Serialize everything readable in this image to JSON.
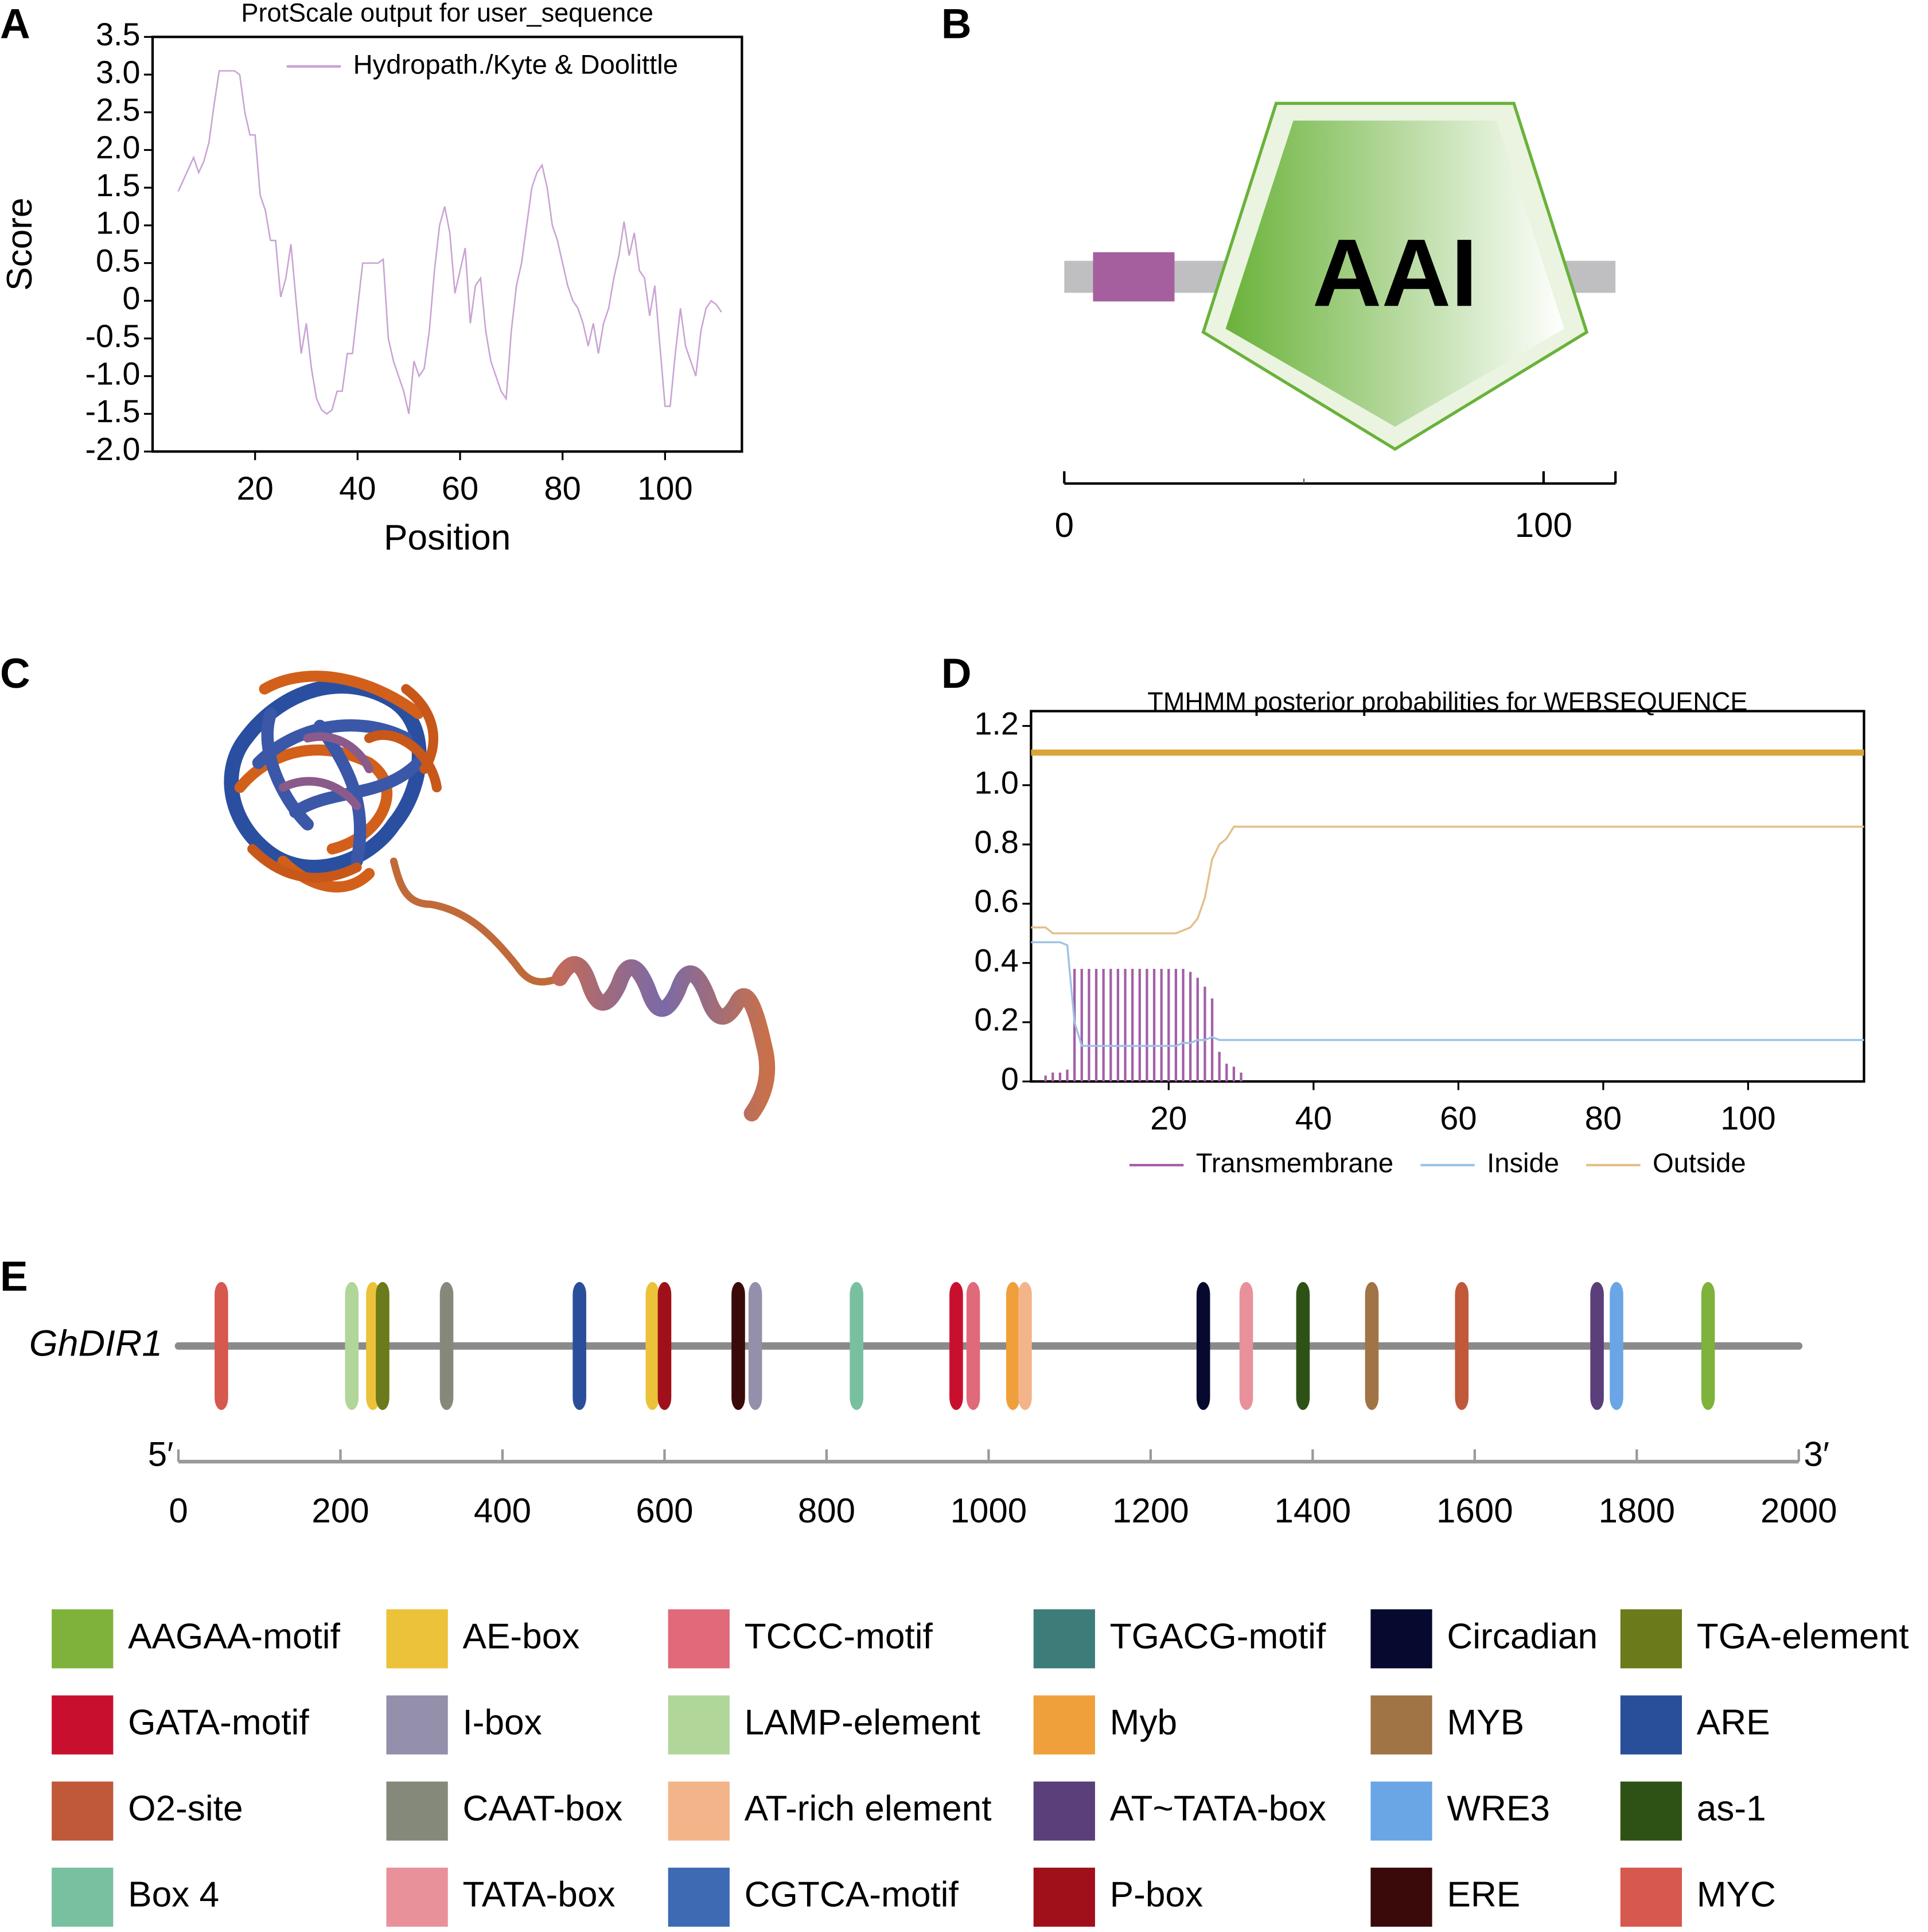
{
  "panel_labels": [
    "A",
    "B",
    "C",
    "D",
    "E"
  ],
  "chart_data": [
    {
      "type": "line",
      "title": "ProtScale output for user_sequence",
      "xlabel": "Position",
      "ylabel": "Score",
      "xlim": [
        0,
        115
      ],
      "ylim": [
        -2,
        3.5
      ],
      "xticks": [
        20,
        40,
        60,
        80,
        100
      ],
      "yticks": [
        3.5,
        {
          "value": 3,
          "label": "3.0"
        },
        2.5,
        {
          "value": 2,
          "label": "2.0"
        },
        1.5,
        {
          "value": 1,
          "label": "1.0"
        },
        0.5,
        0,
        -0.5,
        {
          "value": -1,
          "label": "-1.0"
        },
        -1.5,
        {
          "value": -2,
          "label": "-2.0"
        }
      ],
      "legend": "upper center",
      "x": [
        5,
        6,
        7,
        8,
        9,
        10,
        11,
        12,
        13,
        14,
        15,
        16,
        17,
        18,
        19,
        20,
        21,
        22,
        23,
        24,
        25,
        26,
        27,
        28,
        29,
        30,
        31,
        32,
        33,
        34,
        35,
        36,
        37,
        38,
        39,
        40,
        41,
        42,
        43,
        44,
        45,
        46,
        47,
        48,
        49,
        50,
        51,
        52,
        53,
        54,
        55,
        56,
        57,
        58,
        59,
        60,
        61,
        62,
        63,
        64,
        65,
        66,
        67,
        68,
        69,
        70,
        71,
        72,
        73,
        74,
        75,
        76,
        77,
        78,
        79,
        80,
        81,
        82,
        83,
        84,
        85,
        86,
        87,
        88,
        89,
        90,
        91,
        92,
        93,
        94,
        95,
        96,
        97,
        98,
        99,
        100,
        101,
        102,
        103,
        104,
        105,
        106,
        107,
        108,
        109,
        110,
        111
      ],
      "series": [
        {
          "name": "Hydropath./Kyte & Doolittle",
          "color": "#c9a3d3",
          "style": "line",
          "values": [
            1.45,
            1.6,
            1.75,
            1.9,
            1.7,
            1.85,
            2.1,
            2.6,
            3.05,
            3.05,
            3.05,
            3.05,
            3.0,
            2.5,
            2.2,
            2.2,
            1.4,
            1.2,
            0.8,
            0.8,
            0.05,
            0.3,
            0.75,
            0.0,
            -0.7,
            -0.3,
            -0.9,
            -1.3,
            -1.45,
            -1.5,
            -1.45,
            -1.2,
            -1.2,
            -0.7,
            -0.7,
            -0.1,
            0.5,
            0.5,
            0.5,
            0.5,
            0.55,
            -0.5,
            -0.8,
            -1.0,
            -1.2,
            -1.5,
            -0.8,
            -1.0,
            -0.9,
            -0.4,
            0.4,
            1.0,
            1.25,
            0.9,
            0.1,
            0.4,
            0.7,
            -0.3,
            0.2,
            0.3,
            -0.4,
            -0.8,
            -1.0,
            -1.2,
            -1.3,
            -0.4,
            0.2,
            0.5,
            1.0,
            1.5,
            1.7,
            1.8,
            1.5,
            1.0,
            0.8,
            0.5,
            0.2,
            0.0,
            -0.1,
            -0.3,
            -0.6,
            -0.3,
            -0.7,
            -0.3,
            -0.1,
            0.3,
            0.6,
            1.05,
            0.6,
            0.9,
            0.4,
            0.3,
            -0.2,
            0.2,
            -0.6,
            -1.4,
            -1.4,
            -0.7,
            -0.1,
            -0.6,
            -0.8,
            -1.0,
            -0.4,
            -0.1,
            0.0,
            -0.05,
            -0.15
          ]
        }
      ]
    },
    {
      "type": "domain",
      "length": 115,
      "xlim": [
        0,
        115
      ],
      "xticks": [
        0,
        100
      ],
      "minor_xticks": [
        50
      ],
      "bar_color": "#bfbfc1",
      "domains": [
        {
          "start": 6,
          "end": 23,
          "color": "#a65f9e"
        },
        {
          "name": "AAI",
          "start": 29,
          "end": 109,
          "color": "#6ab23a",
          "label_color": "#1e4a9a"
        }
      ]
    },
    {
      "type": "line",
      "title": "TMHMM posterior probabilities for WEBSEQUENCE",
      "xlim": [
        1,
        116
      ],
      "ylim": [
        0,
        1.25
      ],
      "xticks": [
        20,
        40,
        60,
        80,
        100
      ],
      "yticks": [
        0,
        0.2,
        0.4,
        0.6,
        0.8,
        {
          "value": 1,
          "label": "1.0"
        },
        1.2
      ],
      "legend": "lower center",
      "reference_line": {
        "value": 1.11,
        "color": "#d9a53a"
      },
      "x": [
        1,
        2,
        3,
        4,
        5,
        6,
        7,
        8,
        9,
        10,
        11,
        12,
        13,
        14,
        15,
        16,
        17,
        18,
        19,
        20,
        21,
        22,
        23,
        24,
        25,
        26,
        27,
        28,
        29,
        30,
        116
      ],
      "series": [
        {
          "name": "Transmembrane",
          "color": "#a35fa8",
          "style": "impulses",
          "values": [
            0,
            0,
            0.02,
            0.03,
            0.03,
            0.04,
            0.38,
            0.38,
            0.38,
            0.38,
            0.38,
            0.38,
            0.38,
            0.38,
            0.38,
            0.38,
            0.38,
            0.38,
            0.38,
            0.38,
            0.38,
            0.38,
            0.37,
            0.35,
            0.32,
            0.28,
            0.1,
            0.06,
            0.05,
            0.03,
            0
          ]
        },
        {
          "name": "Inside",
          "color": "#9cc3e6",
          "style": "line",
          "values": [
            0.47,
            0.47,
            0.47,
            0.47,
            0.47,
            0.46,
            0.2,
            0.12,
            0.12,
            0.12,
            0.12,
            0.12,
            0.12,
            0.12,
            0.12,
            0.12,
            0.12,
            0.12,
            0.12,
            0.12,
            0.12,
            0.13,
            0.13,
            0.14,
            0.14,
            0.15,
            0.14,
            0.14,
            0.14,
            0.14,
            0.14
          ]
        },
        {
          "name": "Outside",
          "color": "#e3bf8a",
          "style": "line",
          "values": [
            0.52,
            0.52,
            0.52,
            0.5,
            0.5,
            0.5,
            0.5,
            0.5,
            0.5,
            0.5,
            0.5,
            0.5,
            0.5,
            0.5,
            0.5,
            0.5,
            0.5,
            0.5,
            0.5,
            0.5,
            0.5,
            0.51,
            0.52,
            0.55,
            0.62,
            0.75,
            0.8,
            0.82,
            0.86,
            0.86,
            0.86
          ]
        }
      ]
    },
    {
      "type": "promoter",
      "gene": "GhDIR1",
      "start_label": "5′",
      "end_label": "3′",
      "xlim": [
        0,
        2000
      ],
      "xticks": [
        0,
        200,
        400,
        600,
        800,
        1000,
        1200,
        1400,
        1600,
        1800,
        2000
      ],
      "line_color": "#8a8a8a",
      "elements": [
        {
          "position": 53,
          "color": "#d6584e"
        },
        {
          "position": 214,
          "color": "#b0d69a"
        },
        {
          "position": 240,
          "color": "#ecc23a"
        },
        {
          "position": 252,
          "color": "#6b7a1a"
        },
        {
          "position": 331,
          "color": "#85897a"
        },
        {
          "position": 495,
          "color": "#2a4f9a"
        },
        {
          "position": 585,
          "color": "#ecc23a"
        },
        {
          "position": 600,
          "color": "#a0101a"
        },
        {
          "position": 691,
          "color": "#3a0a0a"
        },
        {
          "position": 712,
          "color": "#948fab"
        },
        {
          "position": 837,
          "color": "#78c0a0"
        },
        {
          "position": 960,
          "color": "#c8102e"
        },
        {
          "position": 981,
          "color": "#e06a7a"
        },
        {
          "position": 1030,
          "color": "#f0a03a"
        },
        {
          "position": 1045,
          "color": "#f4b48a"
        },
        {
          "position": 1265,
          "color": "#070a2e"
        },
        {
          "position": 1318,
          "color": "#e8919a"
        },
        {
          "position": 1388,
          "color": "#2e5216"
        },
        {
          "position": 1473,
          "color": "#a07444"
        },
        {
          "position": 1584,
          "color": "#c0583a"
        },
        {
          "position": 1751,
          "color": "#5a3f7a"
        },
        {
          "position": 1775,
          "color": "#6aa6e6"
        },
        {
          "position": 1888,
          "color": "#7fb23a"
        }
      ],
      "legend_items": [
        {
          "name": "AAGAA-motif",
          "color": "#7fb23a"
        },
        {
          "name": "AE-box",
          "color": "#ecc23a"
        },
        {
          "name": "TCCC-motif",
          "color": "#e06a7a"
        },
        {
          "name": "TGACG-motif",
          "color": "#3c7d7a"
        },
        {
          "name": "Circadian",
          "color": "#070a2e"
        },
        {
          "name": "TGA-element",
          "color": "#6b7a1a"
        },
        {
          "name": "GATA-motif",
          "color": "#c8102e"
        },
        {
          "name": "I-box",
          "color": "#948fab"
        },
        {
          "name": "LAMP-element",
          "color": "#b0d69a"
        },
        {
          "name": "Myb",
          "color": "#f0a03a"
        },
        {
          "name": "MYB",
          "color": "#a07444"
        },
        {
          "name": "ARE",
          "color": "#2a4f9a"
        },
        {
          "name": "O2-site",
          "color": "#c0583a"
        },
        {
          "name": "CAAT-box",
          "color": "#85897a"
        },
        {
          "name": "AT-rich element",
          "color": "#f4b48a"
        },
        {
          "name": "AT~TATA-box",
          "color": "#5a3f7a"
        },
        {
          "name": "WRE3",
          "color": "#6aa6e6"
        },
        {
          "name": "as-1",
          "color": "#2e5216"
        },
        {
          "name": "Box 4",
          "color": "#78c0a0"
        },
        {
          "name": "TATA-box",
          "color": "#e8919a"
        },
        {
          "name": "CGTCA-motif",
          "color": "#3e6ab4"
        },
        {
          "name": "P-box",
          "color": "#a0101a"
        },
        {
          "name": "ERE",
          "color": "#3a0a0a"
        },
        {
          "name": "MYC",
          "color": "#d6584e"
        }
      ]
    }
  ]
}
